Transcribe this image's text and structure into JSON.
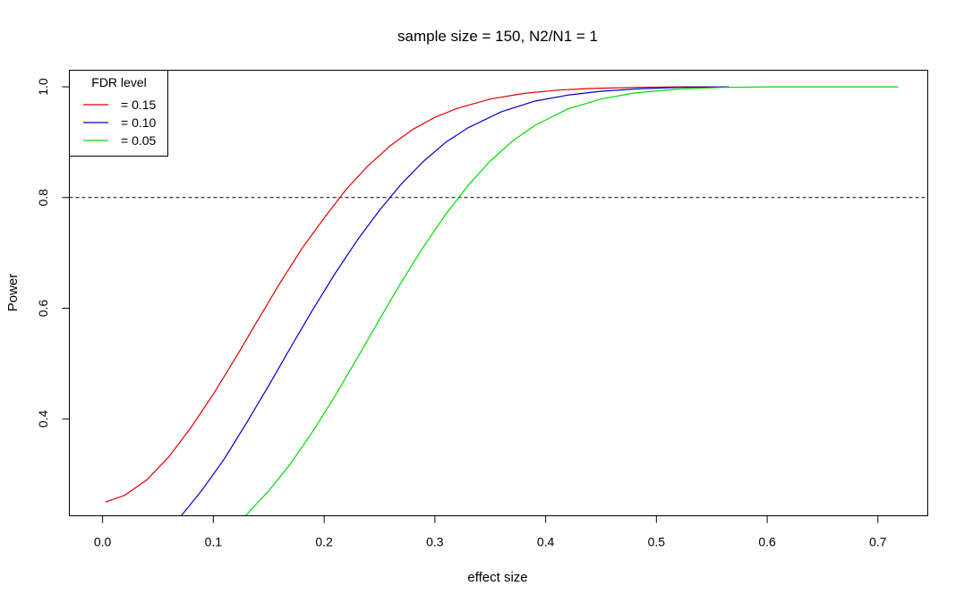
{
  "chart_data": {
    "type": "line",
    "title": "sample size = 150, N2/N1 = 1",
    "xlabel": "effect size",
    "ylabel": "Power",
    "xlim": [
      -0.03,
      0.745
    ],
    "ylim": [
      0.225,
      1.03
    ],
    "x_ticks": [
      {
        "value": 0.0,
        "label": "0.0"
      },
      {
        "value": 0.1,
        "label": "0.1"
      },
      {
        "value": 0.2,
        "label": "0.2"
      },
      {
        "value": 0.3,
        "label": "0.3"
      },
      {
        "value": 0.4,
        "label": "0.4"
      },
      {
        "value": 0.5,
        "label": "0.5"
      },
      {
        "value": 0.6,
        "label": "0.6"
      },
      {
        "value": 0.7,
        "label": "0.7"
      }
    ],
    "y_ticks": [
      {
        "value": 0.4,
        "label": "0.4"
      },
      {
        "value": 0.6,
        "label": "0.6"
      },
      {
        "value": 0.8,
        "label": "0.8"
      },
      {
        "value": 1.0,
        "label": "1.0"
      }
    ],
    "reference_line": {
      "y": 0.8,
      "style": "dashed",
      "color": "#000000"
    },
    "grid": false,
    "legend": {
      "title": "FDR level",
      "position": "top-left",
      "entries": [
        {
          "label": "= 0.15",
          "color": "#dd0000"
        },
        {
          "label": "= 0.10",
          "color": "#0000cc"
        },
        {
          "label": "= 0.05",
          "color": "#00dd00"
        }
      ]
    },
    "series": [
      {
        "legend_label": "= 0.15",
        "color": "#dd0000",
        "x": [
          0.003,
          0.02,
          0.04,
          0.06,
          0.08,
          0.1,
          0.12,
          0.14,
          0.16,
          0.18,
          0.2,
          0.22,
          0.24,
          0.26,
          0.28,
          0.3,
          0.32,
          0.35,
          0.38,
          0.41,
          0.44,
          0.48,
          0.52,
          0.565
        ],
        "y": [
          0.25,
          0.262,
          0.29,
          0.332,
          0.385,
          0.445,
          0.51,
          0.578,
          0.645,
          0.708,
          0.763,
          0.815,
          0.858,
          0.894,
          0.923,
          0.945,
          0.961,
          0.978,
          0.988,
          0.994,
          0.997,
          0.999,
          1.0,
          1.0
        ]
      },
      {
        "legend_label": "= 0.10",
        "color": "#0000cc",
        "x": [
          0.071,
          0.09,
          0.11,
          0.13,
          0.15,
          0.17,
          0.19,
          0.21,
          0.23,
          0.25,
          0.27,
          0.29,
          0.31,
          0.33,
          0.36,
          0.39,
          0.42,
          0.45,
          0.48,
          0.52,
          0.565
        ],
        "y": [
          0.225,
          0.272,
          0.328,
          0.393,
          0.46,
          0.53,
          0.598,
          0.663,
          0.723,
          0.777,
          0.825,
          0.866,
          0.9,
          0.926,
          0.955,
          0.974,
          0.985,
          0.992,
          0.996,
          0.999,
          1.0
        ]
      },
      {
        "legend_label": "= 0.05",
        "color": "#00dd00",
        "x": [
          0.129,
          0.15,
          0.17,
          0.19,
          0.21,
          0.23,
          0.25,
          0.27,
          0.29,
          0.31,
          0.33,
          0.35,
          0.37,
          0.39,
          0.42,
          0.45,
          0.48,
          0.52,
          0.56,
          0.6,
          0.65,
          0.718
        ],
        "y": [
          0.225,
          0.27,
          0.32,
          0.378,
          0.442,
          0.51,
          0.58,
          0.648,
          0.712,
          0.77,
          0.822,
          0.866,
          0.902,
          0.93,
          0.96,
          0.978,
          0.989,
          0.996,
          0.999,
          1.0,
          1.0,
          1.0
        ]
      }
    ]
  }
}
